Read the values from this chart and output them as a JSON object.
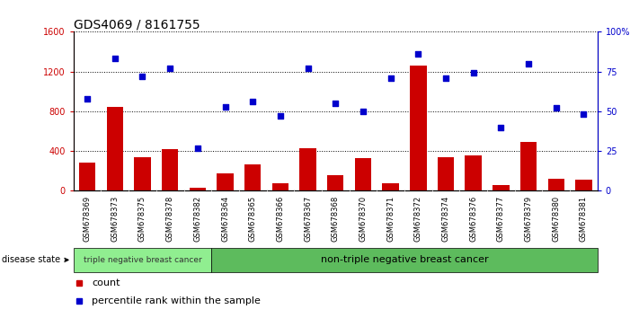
{
  "title": "GDS4069 / 8161755",
  "samples": [
    "GSM678369",
    "GSM678373",
    "GSM678375",
    "GSM678378",
    "GSM678382",
    "GSM678364",
    "GSM678365",
    "GSM678366",
    "GSM678367",
    "GSM678368",
    "GSM678370",
    "GSM678371",
    "GSM678372",
    "GSM678374",
    "GSM678376",
    "GSM678377",
    "GSM678379",
    "GSM678380",
    "GSM678381"
  ],
  "counts": [
    280,
    840,
    340,
    420,
    35,
    175,
    270,
    80,
    430,
    155,
    330,
    80,
    1260,
    340,
    360,
    55,
    490,
    120,
    115
  ],
  "percentiles": [
    58,
    83,
    72,
    77,
    27,
    53,
    56,
    47,
    77,
    55,
    50,
    71,
    86,
    71,
    74,
    40,
    80,
    52,
    48
  ],
  "bar_color": "#cc0000",
  "dot_color": "#0000cc",
  "ylim_left": [
    0,
    1600
  ],
  "ylim_right": [
    0,
    100
  ],
  "yticks_left": [
    0,
    400,
    800,
    1200,
    1600
  ],
  "yticks_right": [
    0,
    25,
    50,
    75,
    100
  ],
  "ytick_labels_right": [
    "0",
    "25",
    "50",
    "75",
    "100%"
  ],
  "group1_count": 5,
  "group1_label": "triple negative breast cancer",
  "group2_label": "non-triple negative breast cancer",
  "group1_color": "#90ee90",
  "group2_color": "#5dbb5d",
  "xtick_bg_color": "#cccccc",
  "disease_state_label": "disease state",
  "legend_count_label": "count",
  "legend_pct_label": "percentile rank within the sample",
  "bar_color_left_ticks": "#cc0000",
  "dot_color_right_ticks": "#0000cc",
  "grid_color": "#000000",
  "title_fontsize": 10,
  "tick_fontsize": 7,
  "sample_fontsize": 6
}
